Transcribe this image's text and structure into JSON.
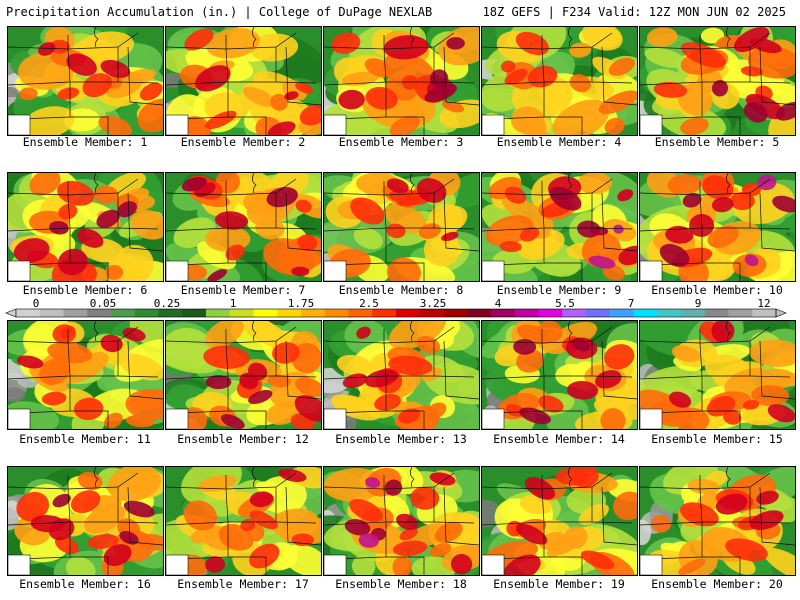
{
  "header": {
    "left_title": "Precipitation Accumulation (in.) | College of DuPage NEXLAB",
    "right_title": "18Z GEFS | F234 Valid: 12Z MON JUN 02 2025"
  },
  "caption_prefix": "Ensemble Member: ",
  "members": [
    {
      "label": "Ensemble Member: 1",
      "intensity": 0.55
    },
    {
      "label": "Ensemble Member: 2",
      "intensity": 0.55
    },
    {
      "label": "Ensemble Member: 3",
      "intensity": 0.6
    },
    {
      "label": "Ensemble Member: 4",
      "intensity": 0.4
    },
    {
      "label": "Ensemble Member: 5",
      "intensity": 0.6
    },
    {
      "label": "Ensemble Member: 6",
      "intensity": 0.6
    },
    {
      "label": "Ensemble Member: 7",
      "intensity": 0.6
    },
    {
      "label": "Ensemble Member: 8",
      "intensity": 0.55
    },
    {
      "label": "Ensemble Member: 9",
      "intensity": 0.75
    },
    {
      "label": "Ensemble Member: 10",
      "intensity": 0.75
    },
    {
      "label": "Ensemble Member: 11",
      "intensity": 0.5
    },
    {
      "label": "Ensemble Member: 12",
      "intensity": 0.6
    },
    {
      "label": "Ensemble Member: 13",
      "intensity": 0.55
    },
    {
      "label": "Ensemble Member: 14",
      "intensity": 0.6
    },
    {
      "label": "Ensemble Member: 15",
      "intensity": 0.45
    },
    {
      "label": "Ensemble Member: 16",
      "intensity": 0.65
    },
    {
      "label": "Ensemble Member: 17",
      "intensity": 0.5
    },
    {
      "label": "Ensemble Member: 18",
      "intensity": 0.75
    },
    {
      "label": "Ensemble Member: 19",
      "intensity": 0.55
    },
    {
      "label": "Ensemble Member: 20",
      "intensity": 0.45
    }
  ],
  "scale": {
    "tick_labels": [
      "0",
      "0.05",
      "0.25",
      "1",
      "1.75",
      "2.5",
      "3.25",
      "4",
      "5.5",
      "7",
      "9",
      "12"
    ],
    "colors": [
      "#d2d2d2",
      "#bebebe",
      "#a0a0a0",
      "#808080",
      "#4e9a4e",
      "#2e8b2e",
      "#1e6e1e",
      "#1a5a1a",
      "#90d040",
      "#c8e020",
      "#ffff00",
      "#ffd700",
      "#ffb000",
      "#ff8c00",
      "#ff6000",
      "#ff3000",
      "#e00000",
      "#c00000",
      "#a00000",
      "#800020",
      "#a00060",
      "#c000a0",
      "#e000e0",
      "#b060ff",
      "#7070ff",
      "#40a0ff",
      "#00e0ff",
      "#40c8c8",
      "#60b0b0",
      "#888888",
      "#a0a0a0",
      "#c0c0c0"
    ]
  }
}
